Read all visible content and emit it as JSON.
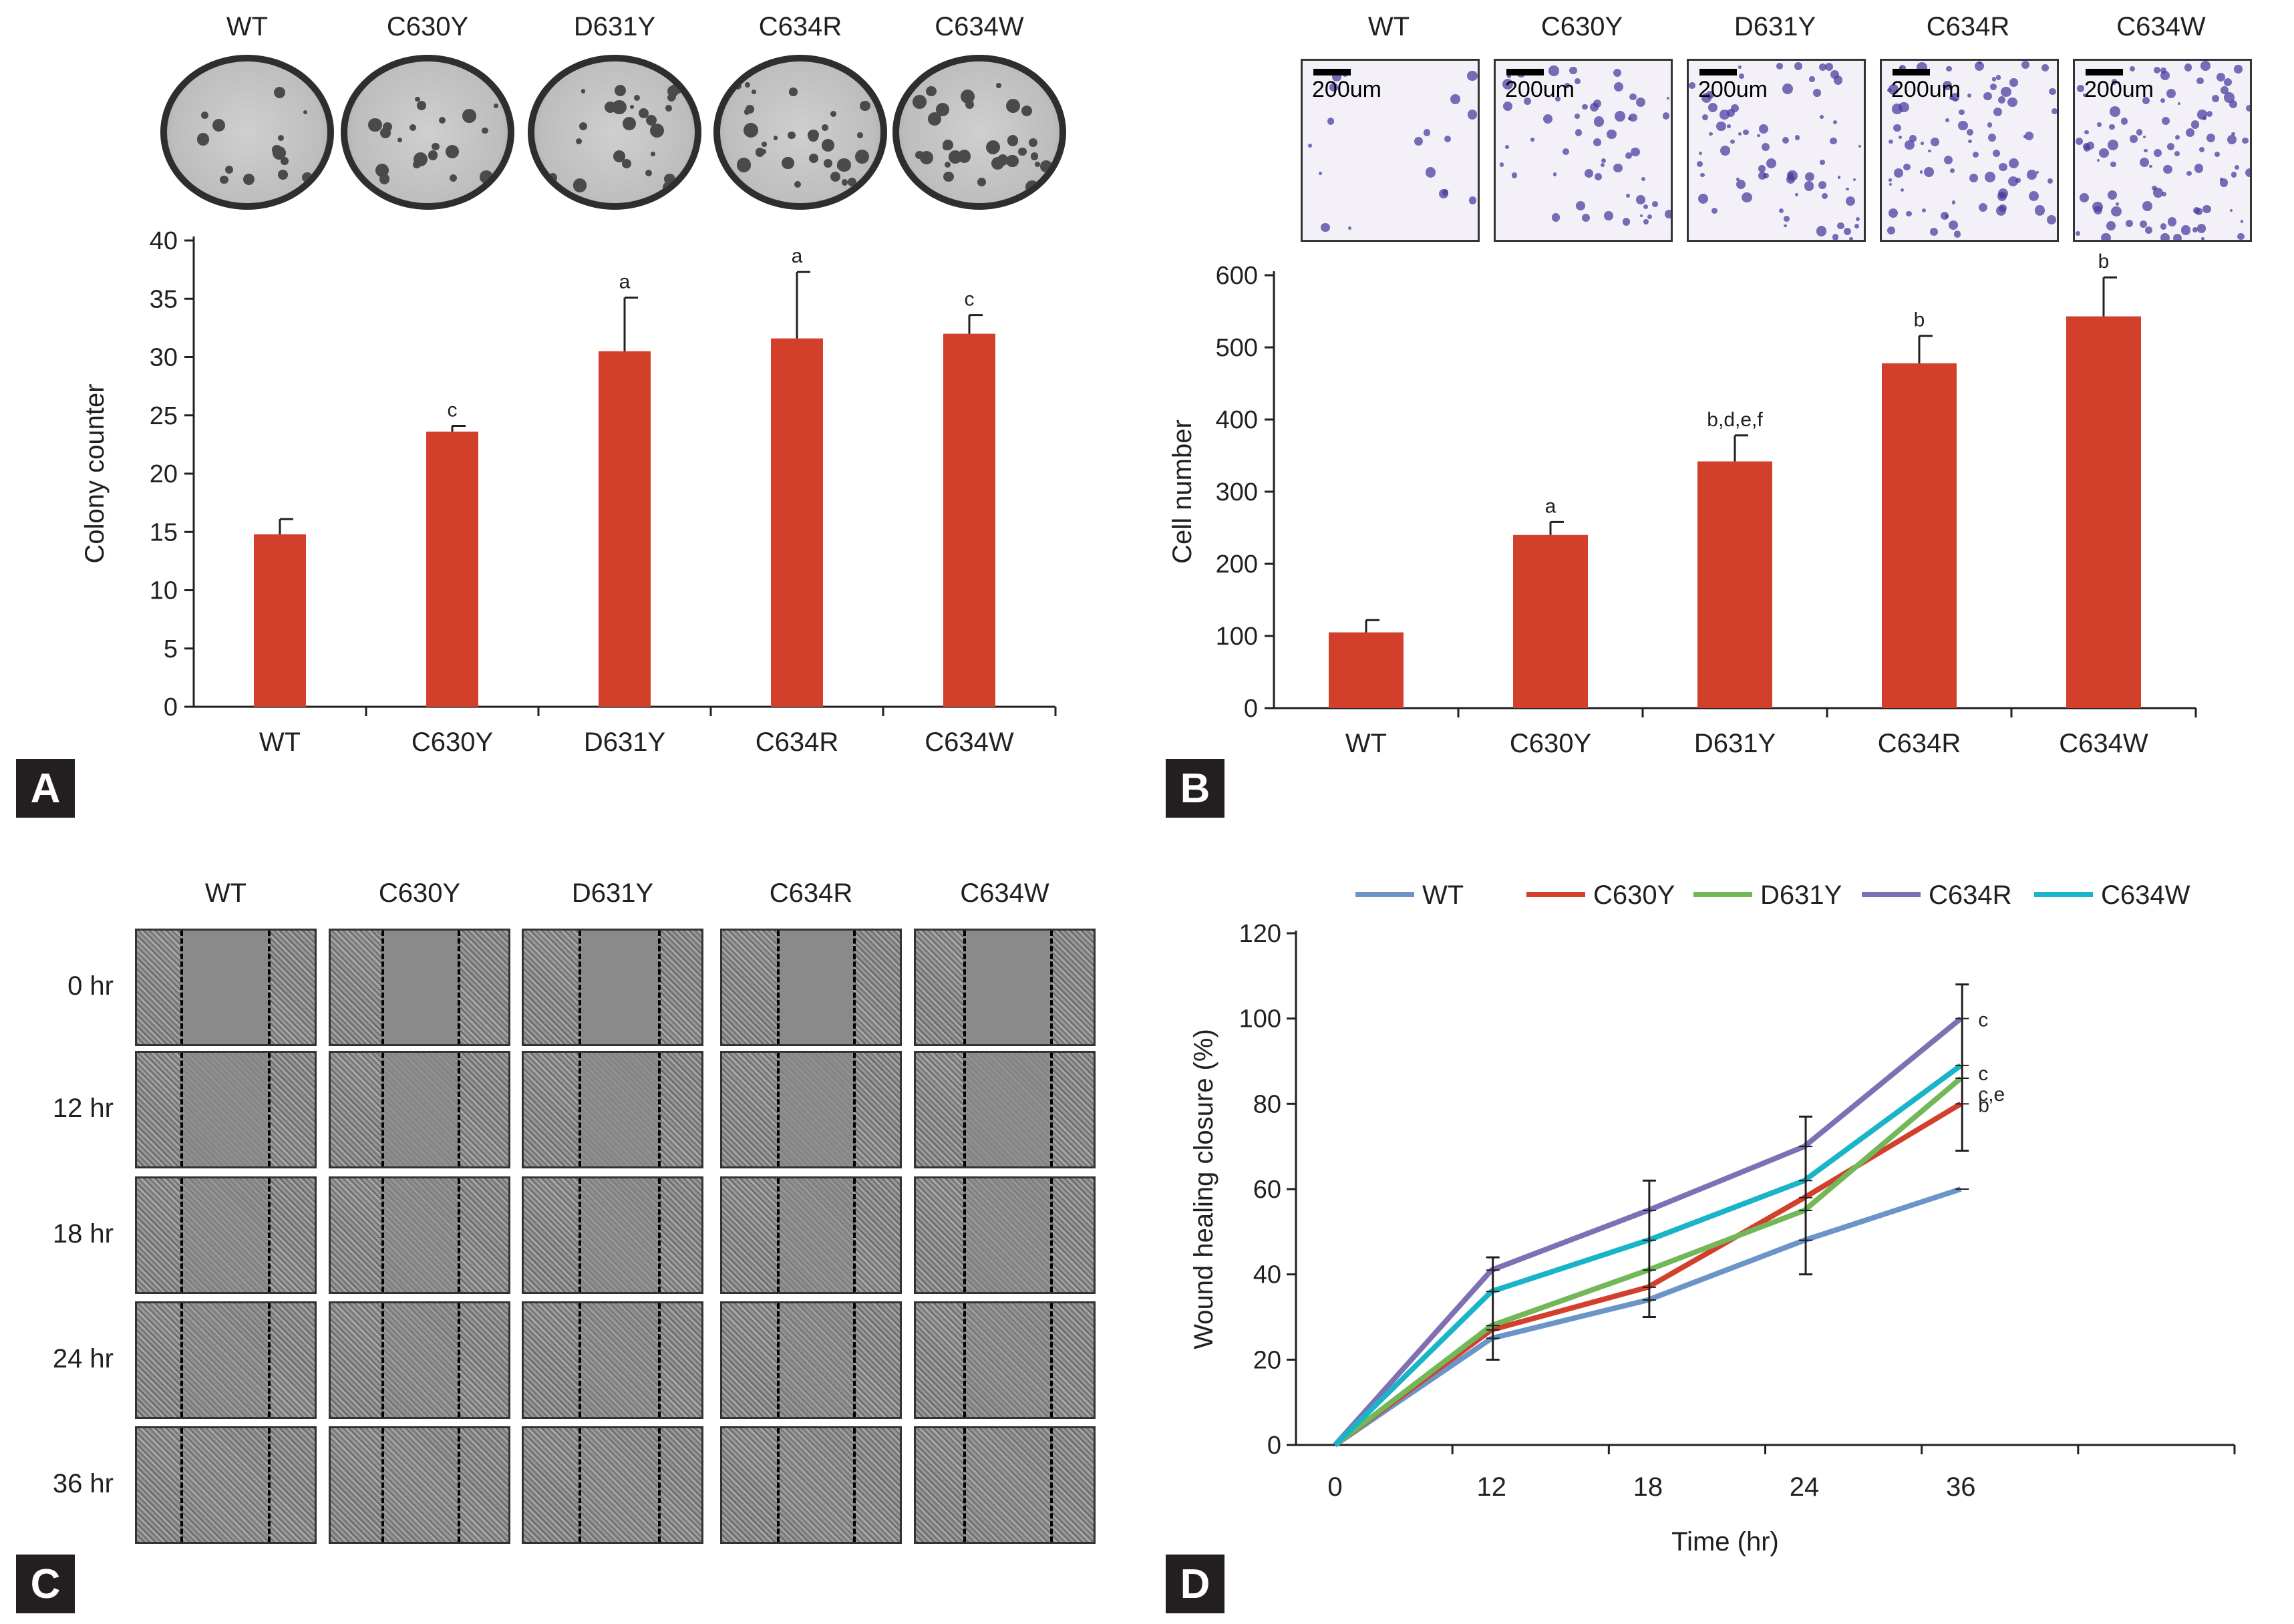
{
  "colors": {
    "bar": "#d2402c",
    "axis": "#231f20",
    "badge_bg": "#231f20",
    "badge_fg": "#ffffff"
  },
  "panels": {
    "A": {
      "badge": "A",
      "image_labels": [
        "WT",
        "C630Y",
        "D631Y",
        "C634R",
        "C634W"
      ],
      "chart_data": {
        "type": "bar",
        "categories": [
          "WT",
          "C630Y",
          "D631Y",
          "C634R",
          "C634W"
        ],
        "values": [
          14.8,
          23.6,
          30.5,
          31.6,
          32.0
        ],
        "errors": [
          1.3,
          0.5,
          4.6,
          5.7,
          1.6
        ],
        "annotations": [
          "",
          "c",
          "a",
          "a",
          "c"
        ],
        "ylabel": "Colony counter",
        "xlabel": "",
        "ylim": [
          0,
          40
        ],
        "yticks": [
          0,
          5,
          10,
          15,
          20,
          25,
          30,
          35,
          40
        ]
      }
    },
    "B": {
      "badge": "B",
      "image_labels": [
        "WT",
        "C630Y",
        "D631Y",
        "C634R",
        "C634W"
      ],
      "scale_bar": "200um",
      "chart_data": {
        "type": "bar",
        "categories": [
          "WT",
          "C630Y",
          "D631Y",
          "C634R",
          "C634W"
        ],
        "values": [
          105,
          240,
          342,
          478,
          543
        ],
        "errors": [
          17,
          18,
          36,
          38,
          54
        ],
        "annotations": [
          "",
          "a",
          "b,d,e,f",
          "b",
          "b"
        ],
        "ylabel": "Cell number",
        "xlabel": "",
        "ylim": [
          0,
          600
        ],
        "yticks": [
          0,
          100,
          200,
          300,
          400,
          500,
          600
        ]
      }
    },
    "C": {
      "badge": "C",
      "column_labels": [
        "WT",
        "C630Y",
        "D631Y",
        "C634R",
        "C634W"
      ],
      "row_labels": [
        "0 hr",
        "12 hr",
        "18 hr",
        "24 hr",
        "36 hr"
      ]
    },
    "D": {
      "badge": "D",
      "chart_data": {
        "type": "line",
        "x": [
          "0",
          "12",
          "18",
          "24",
          "36"
        ],
        "series": [
          {
            "name": "WT",
            "color": "#6b94c9",
            "values": [
              0,
              25,
              34,
              48,
              60
            ]
          },
          {
            "name": "C630Y",
            "color": "#d2402c",
            "values": [
              0,
              27,
              37,
              58,
              80
            ]
          },
          {
            "name": "D631Y",
            "color": "#72b859",
            "values": [
              0,
              28,
              41,
              55,
              86
            ]
          },
          {
            "name": "C634R",
            "color": "#7f70b4",
            "values": [
              0,
              41,
              55,
              70,
              100
            ]
          },
          {
            "name": "C634W",
            "color": "#1ab4c8",
            "values": [
              0,
              36,
              48,
              62,
              89
            ]
          }
        ],
        "error_bars": [
          {
            "x": "12",
            "low": 20,
            "high": 44
          },
          {
            "x": "18",
            "low": 30,
            "high": 62
          },
          {
            "x": "24",
            "low": 40,
            "high": 77
          },
          {
            "x": "36",
            "low": 69,
            "high": 108
          }
        ],
        "annotations": [
          {
            "series": "C634R",
            "text": "c"
          },
          {
            "series": "C634W",
            "text": "c"
          },
          {
            "series": "D631Y",
            "text": "c,e"
          },
          {
            "series": "C630Y",
            "text": "b"
          }
        ],
        "title": "",
        "xlabel": "Time (hr)",
        "ylabel": "Wound healing closure (%)",
        "ylim": [
          0,
          120
        ],
        "yticks": [
          0,
          20,
          40,
          60,
          80,
          100,
          120
        ],
        "legend": "top"
      }
    }
  }
}
